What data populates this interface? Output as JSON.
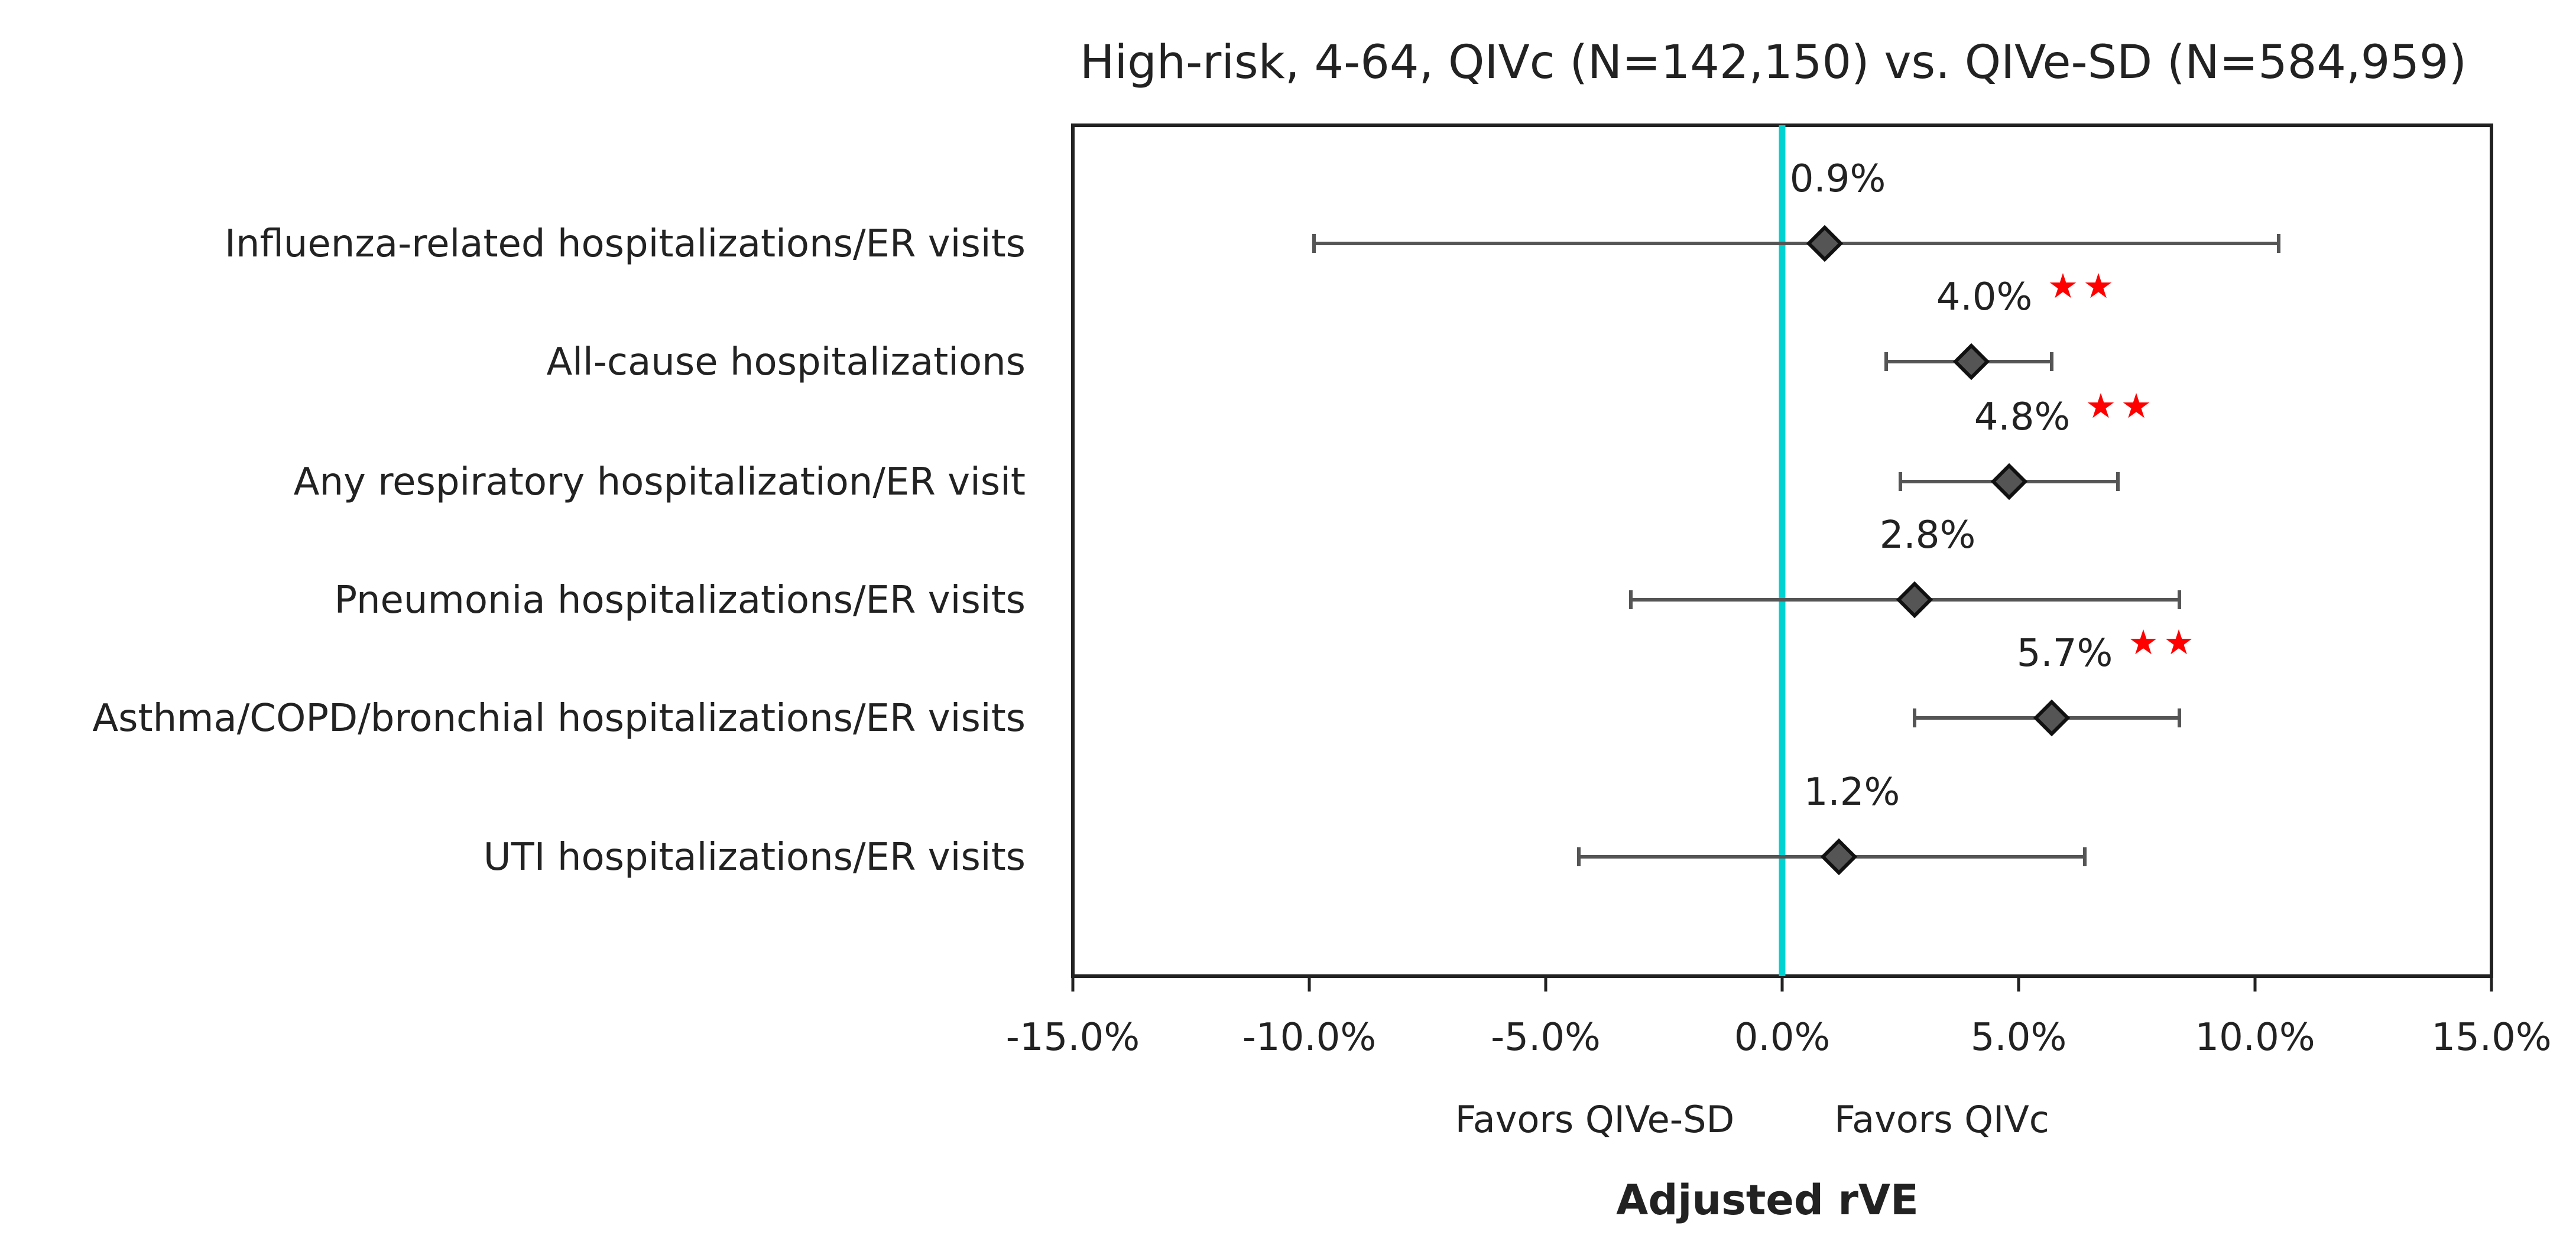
{
  "chart_data": {
    "type": "forest",
    "title": "High-risk, 4-64, QIVc (N=142,150) vs. QIVe-SD (N=584,959)",
    "xlabel": "Adjusted rVE",
    "xlim": [
      -0.15,
      0.15
    ],
    "x_ticks": [
      -0.15,
      -0.1,
      -0.05,
      0.0,
      0.05,
      0.1,
      0.15
    ],
    "x_tick_labels": [
      "-15.0%",
      "-10.0%",
      "-5.0%",
      "0.0%",
      "5.0%",
      "10.0%",
      "15.0%"
    ],
    "favors_left": "Favors QIVe-SD",
    "favors_right": "Favors QIVc",
    "reference_line": 0.0,
    "reference_line_color": "#00D2D2",
    "marker_color": "#555555",
    "star_color": "#FF0000",
    "star_glyph": "★",
    "outcomes": [
      {
        "label": "Influenza-related hospitalizations/ER visits",
        "estimate": 0.009,
        "lower": -0.099,
        "upper": 0.105,
        "estimate_label": "0.9%",
        "significant": false
      },
      {
        "label": "All-cause hospitalizations",
        "estimate": 0.04,
        "lower": 0.022,
        "upper": 0.057,
        "estimate_label": "4.0%",
        "significant": true
      },
      {
        "label": "Any respiratory hospitalization/ER visit",
        "estimate": 0.048,
        "lower": 0.025,
        "upper": 0.071,
        "estimate_label": "4.8%",
        "significant": true
      },
      {
        "label": "Pneumonia hospitalizations/ER visits",
        "estimate": 0.028,
        "lower": -0.032,
        "upper": 0.084,
        "estimate_label": "2.8%",
        "significant": false
      },
      {
        "label": "Asthma/COPD/bronchial hospitalizations/ER visits",
        "estimate": 0.057,
        "lower": 0.028,
        "upper": 0.084,
        "estimate_label": "5.7%",
        "significant": true
      },
      {
        "label": "UTI hospitalizations/ER visits",
        "estimate": 0.012,
        "lower": -0.043,
        "upper": 0.064,
        "estimate_label": "1.2%",
        "significant": false
      }
    ]
  }
}
